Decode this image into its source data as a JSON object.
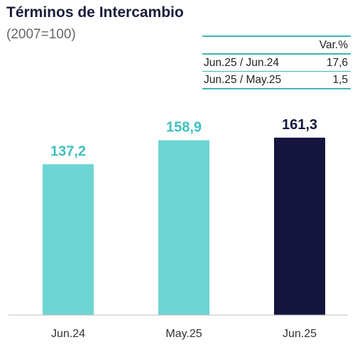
{
  "title": "Términos de Intercambio",
  "subtitle": "(2007=100)",
  "var_table": {
    "header": "Var.%",
    "rows": [
      {
        "label": "Jun.25 / Jun.24",
        "value": "17,6"
      },
      {
        "label": "Jun.25 / May.25",
        "value": "1,5"
      }
    ],
    "accent_color": "#3fb5b5"
  },
  "chart_data": {
    "type": "bar",
    "title": "Términos de Intercambio",
    "subtitle": "(2007=100)",
    "categories": [
      "Jun.24",
      "May.25",
      "Jun.25"
    ],
    "values": [
      137.2,
      158.9,
      161.3
    ],
    "value_labels": [
      "137,2",
      "158,9",
      "161,3"
    ],
    "bar_colors": [
      "#6dd5d3",
      "#6dd5d3",
      "#14143f"
    ],
    "label_colors": [
      "#3fc0c0",
      "#3fc0c0",
      "#14143f"
    ],
    "ylim": [
      0,
      161.3
    ],
    "grid": false,
    "legend": "none"
  }
}
